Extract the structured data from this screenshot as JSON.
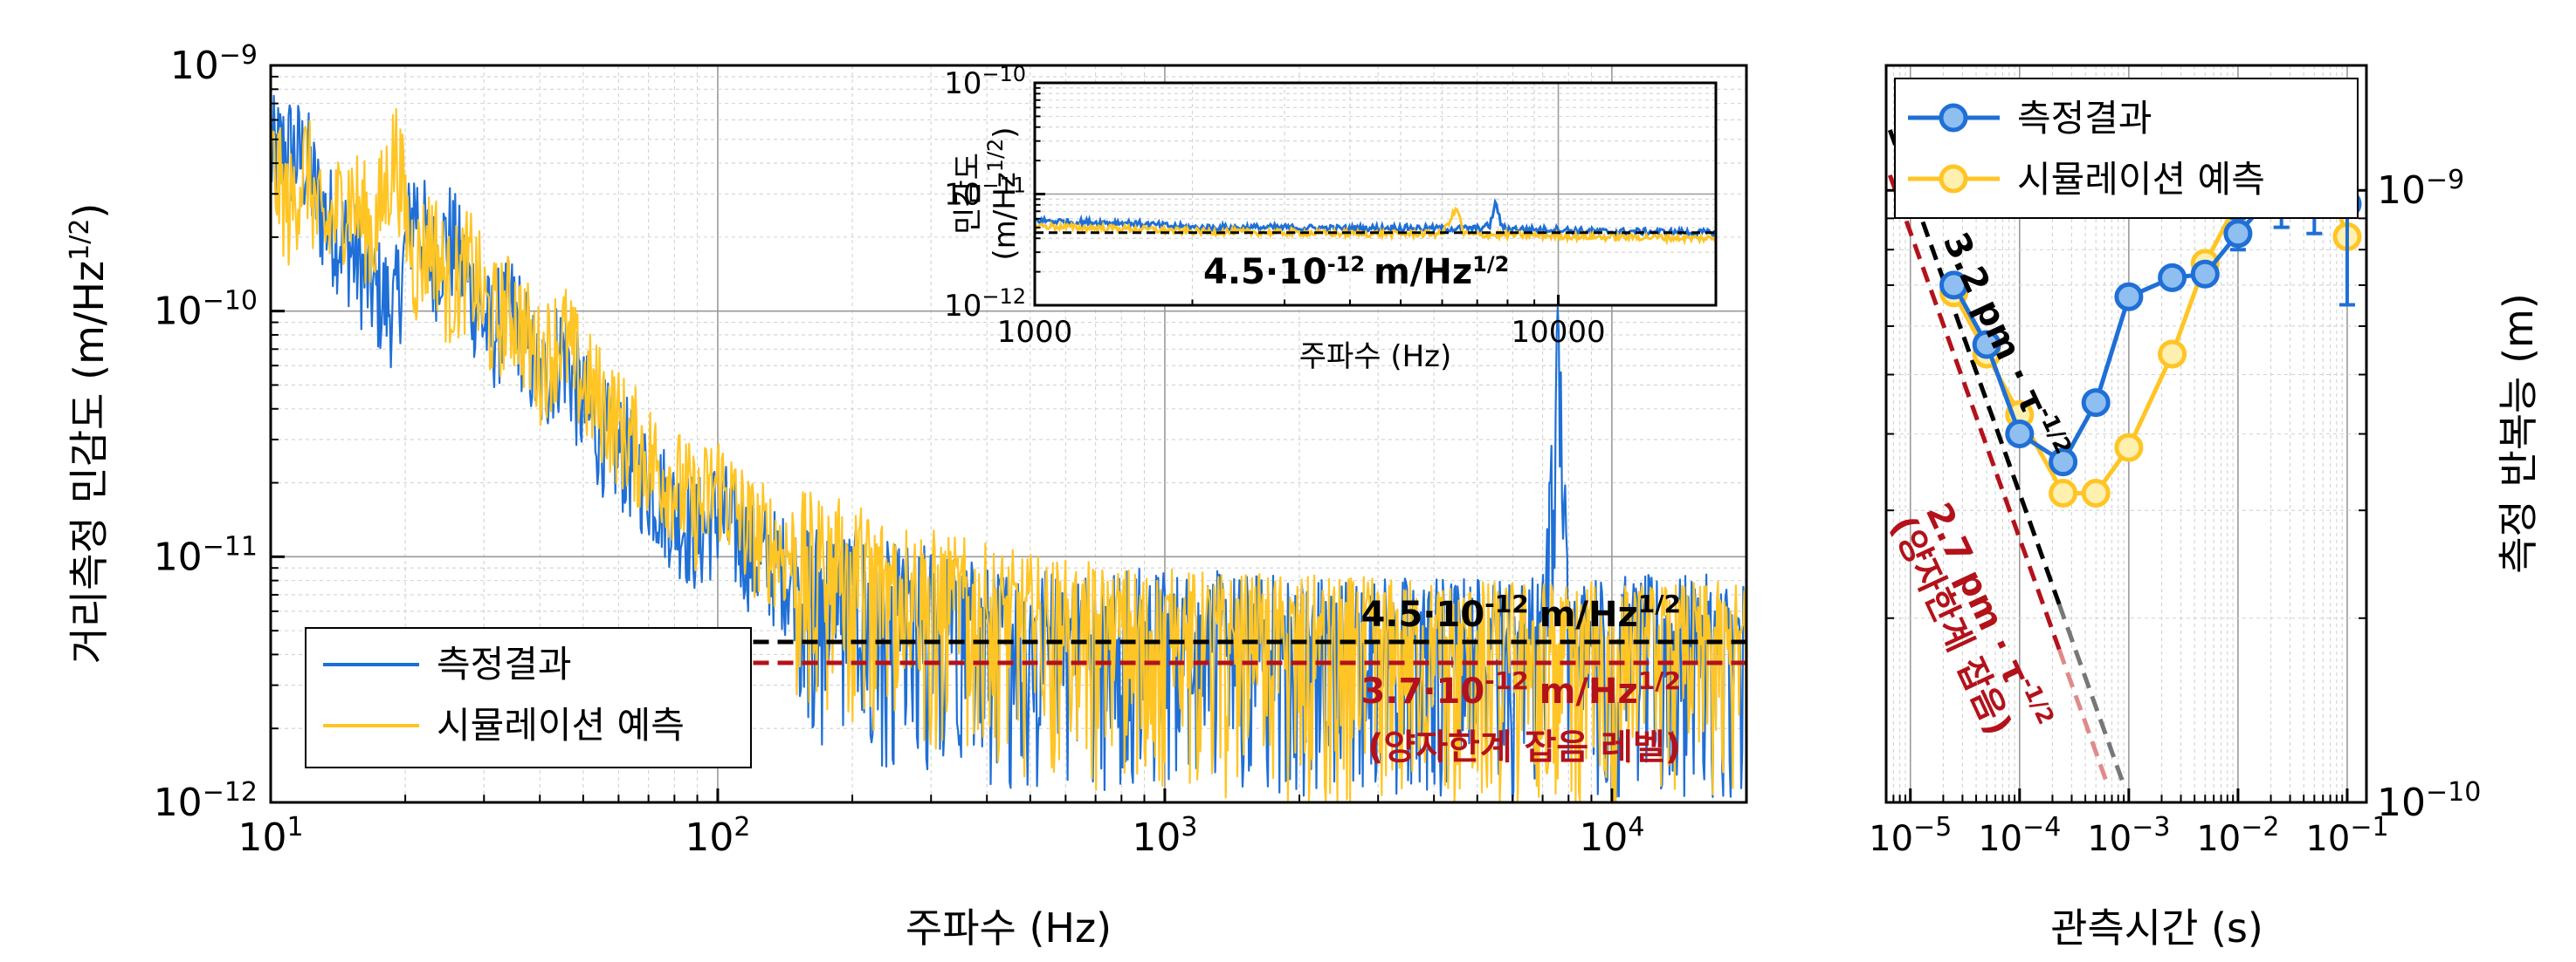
{
  "chart_data": [
    {
      "type": "line",
      "id": "psd",
      "xlabel": "주파수 (Hz)",
      "ylabel": "거리측정 민감도 (m/Hz",
      "ylabel_sup": "1/2",
      "ylabel_close": ")",
      "xscale": "log",
      "yscale": "log",
      "xlim": [
        10,
        20000
      ],
      "ylim": [
        1e-12,
        1e-09
      ],
      "xticks": [
        {
          "base": "10",
          "exp": "1",
          "value": 10
        },
        {
          "base": "10",
          "exp": "2",
          "value": 100
        },
        {
          "base": "10",
          "exp": "3",
          "value": 1000
        },
        {
          "base": "10",
          "exp": "4",
          "value": 10000
        }
      ],
      "yticks": [
        {
          "base": "10",
          "exp": "−12",
          "value": 1e-12
        },
        {
          "base": "10",
          "exp": "−11",
          "value": 1e-11
        },
        {
          "base": "10",
          "exp": "−10",
          "value": 1e-10
        },
        {
          "base": "10",
          "exp": "−9",
          "value": 1e-09
        }
      ],
      "grid": true,
      "legend_position": "bottom-left",
      "series": [
        {
          "name": "측정결과",
          "color": "#1f6fd6",
          "x": [
            10,
            11,
            12,
            13,
            15,
            17,
            19,
            21,
            23,
            25,
            28,
            31,
            35,
            40,
            45,
            50,
            56,
            63,
            70,
            80,
            90,
            100,
            120,
            150,
            200,
            250,
            300,
            400,
            500,
            700,
            1000,
            1500,
            2000,
            3000,
            5000,
            7000,
            7600,
            8000,
            10000,
            15000,
            20000
          ],
          "y": [
            4.2e-10,
            4.5e-10,
            4e-10,
            2.5e-10,
            1.8e-10,
            1.2e-10,
            1e-10,
            2.8e-10,
            1.5e-10,
            2e-10,
            1.2e-10,
            8e-11,
            1e-10,
            5e-11,
            7e-11,
            4e-11,
            3e-11,
            2.5e-11,
            2e-11,
            1.5e-11,
            1.2e-11,
            1.5e-11,
            1e-11,
            8e-12,
            7e-12,
            6e-12,
            6e-12,
            5e-12,
            5e-12,
            5e-12,
            4.8e-12,
            4.6e-12,
            4.6e-12,
            4.5e-12,
            4.5e-12,
            4.5e-12,
            7e-11,
            4.6e-12,
            4.5e-12,
            4.5e-12,
            4.5e-12
          ]
        },
        {
          "name": "시뮬레이션 예측",
          "color": "#ffc525",
          "x": [
            10,
            11,
            12,
            13,
            15,
            17,
            19,
            21,
            23,
            25,
            28,
            31,
            35,
            40,
            45,
            50,
            56,
            63,
            70,
            80,
            90,
            100,
            120,
            150,
            200,
            250,
            300,
            400,
            500,
            700,
            1000,
            1500,
            2000,
            3000,
            5000,
            7000,
            10000,
            15000,
            20000
          ],
          "y": [
            4e-10,
            2.5e-10,
            4e-10,
            2e-10,
            3e-10,
            2e-10,
            4.5e-10,
            1.5e-10,
            2e-10,
            1.2e-10,
            1.5e-10,
            9e-11,
            1e-10,
            6e-11,
            8e-11,
            5e-11,
            4e-11,
            3e-11,
            2.5e-11,
            2e-11,
            1.5e-11,
            2e-11,
            1.2e-11,
            1e-11,
            9e-12,
            8e-12,
            7e-12,
            6e-12,
            5.5e-12,
            5e-12,
            4.8e-12,
            4.6e-12,
            4.5e-12,
            4.4e-12,
            4.3e-12,
            4.3e-12,
            4.2e-12,
            4.2e-12,
            4.2e-12
          ]
        }
      ],
      "reference_lines": [
        {
          "value": 4.5e-12,
          "color": "#000000",
          "style": "dashed",
          "label": "4.5·10",
          "label_exp": "-12",
          "label_unit": "m/Hz",
          "label_unit_exp": "1/2"
        },
        {
          "value": 3.7e-12,
          "color": "#b3121a",
          "style": "dashed",
          "label": "3.7·10",
          "label_exp": "-12",
          "label_unit": "m/Hz",
          "label_unit_exp": "1/2",
          "label2": "(양자한계 잡음 레벨)"
        }
      ]
    },
    {
      "type": "line",
      "id": "inset",
      "xlabel": "주파수 (Hz)",
      "ylabel_line1": "민감도",
      "ylabel_line2": "(m/Hz",
      "ylabel_sup": "1/2",
      "ylabel_close": ")",
      "xscale": "log",
      "yscale": "log",
      "xlim": [
        1000,
        20000
      ],
      "ylim": [
        1e-12,
        1e-10
      ],
      "xticks": [
        {
          "label": "1000",
          "value": 1000
        },
        {
          "label": "10000",
          "value": 10000
        }
      ],
      "yticks": [
        {
          "base": "10",
          "exp": "−12",
          "value": 1e-12
        },
        {
          "base": "10",
          "exp": "−11",
          "value": 1e-11
        },
        {
          "base": "10",
          "exp": "−10",
          "value": 1e-10
        }
      ],
      "series": [
        {
          "name": "측정결과",
          "color": "#1f6fd6",
          "x": [
            1000,
            1200,
            1500,
            2000,
            3000,
            4000,
            5000,
            6000,
            7000,
            7400,
            7600,
            7800,
            8000,
            9000,
            10000,
            12000,
            15000,
            18000,
            20000
          ],
          "y": [
            5.8e-12,
            5.6e-12,
            5.5e-12,
            5e-12,
            5e-12,
            4.9e-12,
            5e-12,
            4.9e-12,
            4.9e-12,
            5.2e-12,
            8.5e-12,
            5e-12,
            4.9e-12,
            4.8e-12,
            4.8e-12,
            4.6e-12,
            4.6e-12,
            4.5e-12,
            4.5e-12
          ]
        },
        {
          "name": "시뮬레이션 예측",
          "color": "#ffc525",
          "x": [
            1000,
            1200,
            1500,
            2000,
            3000,
            4000,
            5000,
            6000,
            6400,
            6600,
            7000,
            8000,
            10000,
            12000,
            15000,
            18000,
            20000
          ],
          "y": [
            5.2e-12,
            5e-12,
            4.9e-12,
            4.6e-12,
            4.5e-12,
            4.4e-12,
            4.4e-12,
            4.4e-12,
            7.5e-12,
            4.4e-12,
            4.3e-12,
            4.3e-12,
            4.2e-12,
            4.1e-12,
            4.1e-12,
            4e-12,
            4e-12
          ]
        }
      ],
      "reference_lines": [
        {
          "value": 4.5e-12,
          "color": "#000000",
          "style": "dashed"
        }
      ],
      "annotation": "4.5·10",
      "annotation_exp": "-12",
      "annotation_unit": "m/Hz",
      "annotation_unit_exp": "1/2"
    },
    {
      "type": "line",
      "id": "allan",
      "xlabel": "관측시간 (s)",
      "ylabel": "측정 반복능 (m)",
      "xscale": "log",
      "yscale": "log",
      "xlim": [
        6e-06,
        0.15
      ],
      "ylim": [
        1e-10,
        1.6e-09
      ],
      "xticks": [
        {
          "base": "10",
          "exp": "−5",
          "value": 1e-05
        },
        {
          "base": "10",
          "exp": "−4",
          "value": 0.0001
        },
        {
          "base": "10",
          "exp": "−3",
          "value": 0.001
        },
        {
          "base": "10",
          "exp": "−2",
          "value": 0.01
        },
        {
          "base": "10",
          "exp": "−1",
          "value": 0.1
        }
      ],
      "yticks": [
        {
          "base": "10",
          "exp": "−10",
          "value": 1e-10
        },
        {
          "base": "10",
          "exp": "−9",
          "value": 1e-09
        }
      ],
      "grid": true,
      "legend_position": "top-left",
      "series": [
        {
          "name": "측정결과",
          "color": "#1f6fd6",
          "x": [
            2.5e-05,
            5e-05,
            0.0001,
            0.00025,
            0.0005,
            0.001,
            0.0025,
            0.005,
            0.01,
            0.025,
            0.05,
            0.1
          ],
          "y": [
            7e-10,
            5.6e-10,
            4e-10,
            3.6e-10,
            4.5e-10,
            6.7e-10,
            7.2e-10,
            7.3e-10,
            8.5e-10,
            1.02e-09,
            1.1e-09,
            9.5e-10
          ],
          "yerr": [
            0,
            0,
            0,
            0,
            0,
            0,
            0,
            0,
            5e-11,
            1.5e-10,
            2.5e-10,
            3e-10
          ]
        },
        {
          "name": "시뮬레이션 예측",
          "color": "#ffc525",
          "x": [
            2.5e-05,
            5e-05,
            0.0001,
            0.00025,
            0.0005,
            0.001,
            0.0025,
            0.005,
            0.01,
            0.025,
            0.05,
            0.1
          ],
          "y": [
            6.8e-10,
            5.4e-10,
            4.3e-10,
            3.2e-10,
            3.2e-10,
            3.8e-10,
            5.4e-10,
            7.6e-10,
            9.6e-10,
            1.25e-09,
            1.2e-09,
            8.4e-10
          ]
        }
      ],
      "guide_lines": [
        {
          "label": "3.2 pm · τ",
          "label_exp": "-1/2",
          "color": "#000000",
          "fade_color": "#777777",
          "coef": 3.2e-12
        },
        {
          "label": "2.7 pm · τ",
          "label_exp": "-1/2",
          "label2": "(양자한계 잡음)",
          "color": "#b3121a",
          "fade_color": "#e08a8a",
          "coef": 2.7e-12
        }
      ]
    }
  ]
}
